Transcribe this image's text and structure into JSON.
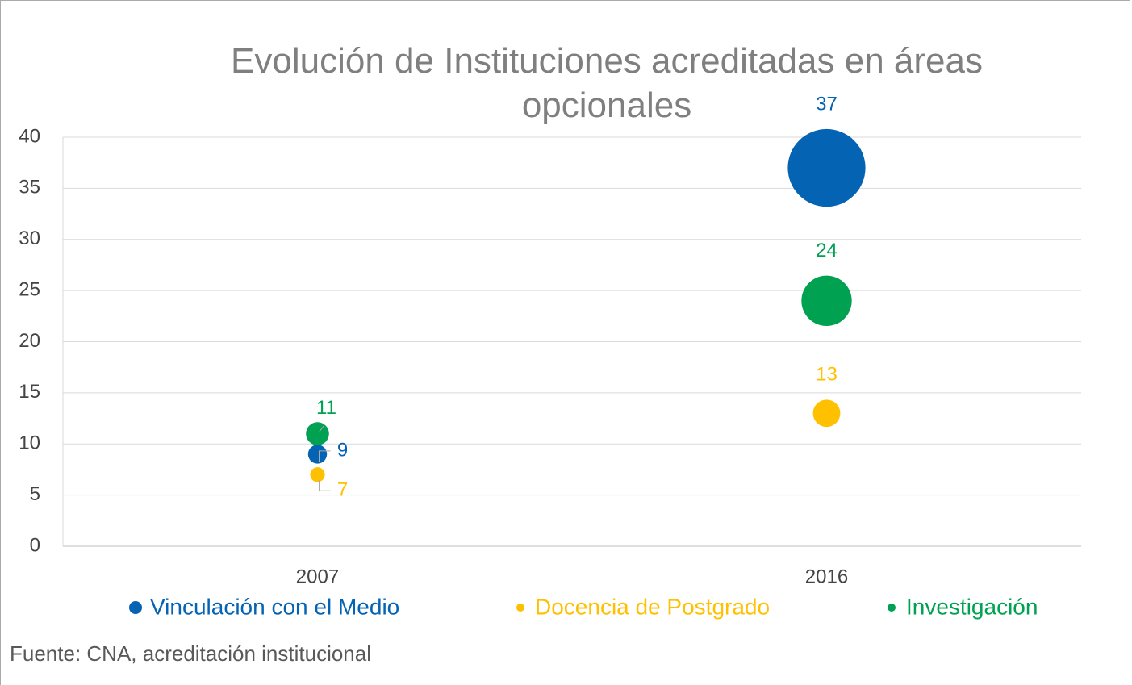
{
  "chart_data": {
    "type": "bubble",
    "title": "Evolución de Instituciones acreditadas en áreas opcionales",
    "categories": [
      "2007",
      "2016"
    ],
    "series": [
      {
        "name": "Vinculación con el Medio",
        "color": "#0563b4",
        "values": [
          9,
          37
        ]
      },
      {
        "name": "Docencia de Postgrado",
        "color": "#ffc000",
        "values": [
          7,
          13
        ]
      },
      {
        "name": "Investigación",
        "color": "#00a151",
        "values": [
          11,
          24
        ]
      }
    ],
    "ylim": [
      0,
      40
    ],
    "yticks": [
      0,
      5,
      10,
      15,
      20,
      25,
      30,
      35,
      40
    ],
    "grid": true,
    "legend": "bottom",
    "source": "Fuente: CNA, acreditación institucional"
  }
}
